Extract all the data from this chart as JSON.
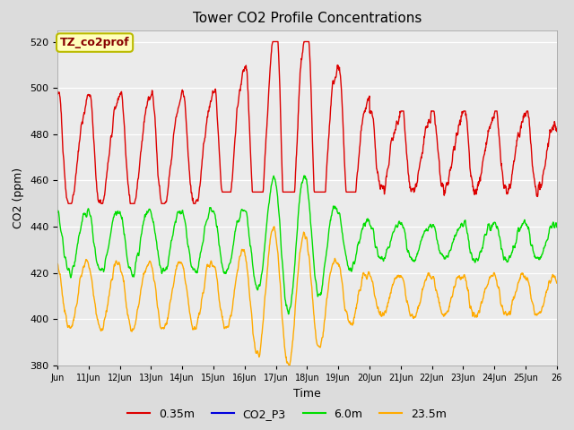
{
  "title": "Tower CO2 Profile Concentrations",
  "xlabel": "Time",
  "ylabel": "CO2 (ppm)",
  "ylim": [
    380,
    525
  ],
  "yticks": [
    380,
    400,
    420,
    440,
    460,
    480,
    500,
    520
  ],
  "xtick_positions": [
    10,
    11,
    12,
    13,
    14,
    15,
    16,
    17,
    18,
    19,
    20,
    21,
    22,
    23,
    24,
    25,
    26
  ],
  "xtick_labels": [
    "Jun",
    "11Jun",
    "12Jun",
    "13Jun",
    "14Jun",
    "15Jun",
    "16Jun",
    "17Jun",
    "18Jun",
    "19Jun",
    "20Jun",
    "21Jun",
    "22Jun",
    "23Jun",
    "24Jun",
    "25Jun",
    "26"
  ],
  "series": {
    "0.35m": {
      "color": "#dd0000"
    },
    "CO2_P3": {
      "color": "#0000dd"
    },
    "6.0m": {
      "color": "#00dd00"
    },
    "23.5m": {
      "color": "#ffaa00"
    }
  },
  "fig_bg": "#dcdcdc",
  "plot_bg": "#ebebeb",
  "grid_color": "#ffffff",
  "annotation_text": "TZ_co2prof",
  "annotation_color": "#880000",
  "annotation_bg": "#ffffbb",
  "annotation_border": "#bbbb00",
  "legend_labels": [
    "0.35m",
    "CO2_P3",
    "6.0m",
    "23.5m"
  ],
  "legend_colors": [
    "#dd0000",
    "#0000dd",
    "#00dd00",
    "#ffaa00"
  ]
}
